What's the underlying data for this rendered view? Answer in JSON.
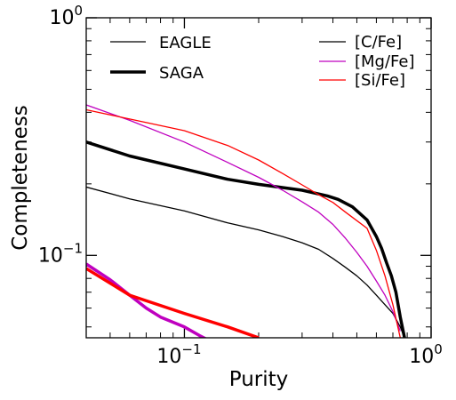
{
  "chart_data": {
    "type": "line",
    "xlabel": "Purity",
    "ylabel": "Completeness",
    "xscale": "log",
    "yscale": "log",
    "xlim": [
      0.04,
      1.0
    ],
    "ylim": [
      0.045,
      1.0
    ],
    "xticks": [
      {
        "value": 0.1,
        "base": "10",
        "exp": "−1"
      },
      {
        "value": 1.0,
        "base": "10",
        "exp": "0"
      }
    ],
    "yticks": [
      {
        "value": 0.1,
        "base": "10",
        "exp": "−1"
      },
      {
        "value": 1.0,
        "base": "10",
        "exp": "0"
      }
    ],
    "legend_styles": {
      "placement": "top-left",
      "items": [
        {
          "name": "EAGLE",
          "color": "#000000",
          "width": 1.3
        },
        {
          "name": "SAGA",
          "color": "#000000",
          "width": 3.5
        }
      ]
    },
    "legend_elements": {
      "placement": "top-right",
      "items": [
        {
          "name": "[C/Fe]",
          "color": "#000000"
        },
        {
          "name": "[Mg/Fe]",
          "color": "#bf00bf"
        },
        {
          "name": "[Si/Fe]",
          "color": "#ff0000"
        }
      ]
    },
    "series": [
      {
        "dataset": "SAGA",
        "element": "[C/Fe]",
        "color": "#000000",
        "width": 3.5,
        "x": [
          0.04,
          0.06,
          0.1,
          0.15,
          0.2,
          0.3,
          0.38,
          0.42,
          0.48,
          0.55,
          0.6,
          0.63,
          0.66,
          0.69,
          0.72,
          0.75,
          0.78
        ],
        "y": [
          0.3,
          0.262,
          0.231,
          0.209,
          0.199,
          0.188,
          0.178,
          0.172,
          0.16,
          0.141,
          0.12,
          0.107,
          0.093,
          0.082,
          0.07,
          0.055,
          0.045
        ]
      },
      {
        "dataset": "EAGLE",
        "element": "[C/Fe]",
        "color": "#000000",
        "width": 1.3,
        "x": [
          0.04,
          0.06,
          0.1,
          0.15,
          0.2,
          0.25,
          0.3,
          0.35,
          0.4,
          0.45,
          0.5,
          0.55,
          0.6,
          0.65,
          0.7,
          0.75,
          0.78
        ],
        "y": [
          0.194,
          0.173,
          0.154,
          0.137,
          0.128,
          0.12,
          0.113,
          0.106,
          0.097,
          0.089,
          0.082,
          0.075,
          0.068,
          0.062,
          0.057,
          0.05,
          0.045
        ]
      },
      {
        "dataset": "EAGLE",
        "element": "[Mg/Fe]",
        "color": "#bf00bf",
        "width": 1.3,
        "x": [
          0.04,
          0.06,
          0.1,
          0.15,
          0.2,
          0.25,
          0.3,
          0.35,
          0.4,
          0.45,
          0.5,
          0.55,
          0.6,
          0.65,
          0.7,
          0.75
        ],
        "y": [
          0.43,
          0.37,
          0.3,
          0.246,
          0.213,
          0.188,
          0.168,
          0.152,
          0.135,
          0.118,
          0.103,
          0.09,
          0.078,
          0.068,
          0.058,
          0.048
        ]
      },
      {
        "dataset": "EAGLE",
        "element": "[Si/Fe]",
        "color": "#ff0000",
        "width": 1.3,
        "x": [
          0.04,
          0.06,
          0.1,
          0.15,
          0.2,
          0.25,
          0.3,
          0.35,
          0.4,
          0.45,
          0.5,
          0.55,
          0.6,
          0.65,
          0.7,
          0.75
        ],
        "y": [
          0.41,
          0.375,
          0.335,
          0.29,
          0.252,
          0.221,
          0.198,
          0.18,
          0.167,
          0.152,
          0.14,
          0.13,
          0.105,
          0.082,
          0.062,
          0.045
        ]
      },
      {
        "dataset": "SAGA",
        "element": "[Mg/Fe]",
        "color": "#bf00bf",
        "width": 3.5,
        "x": [
          0.04,
          0.05,
          0.06,
          0.07,
          0.08,
          0.1,
          0.115,
          0.125
        ],
        "y": [
          0.092,
          0.079,
          0.068,
          0.06,
          0.055,
          0.05,
          0.046,
          0.044
        ]
      },
      {
        "dataset": "SAGA",
        "element": "[Si/Fe]",
        "color": "#ff0000",
        "width": 3.5,
        "x": [
          0.04,
          0.06,
          0.1,
          0.15,
          0.2
        ],
        "y": [
          0.088,
          0.068,
          0.057,
          0.05,
          0.045
        ]
      }
    ]
  }
}
